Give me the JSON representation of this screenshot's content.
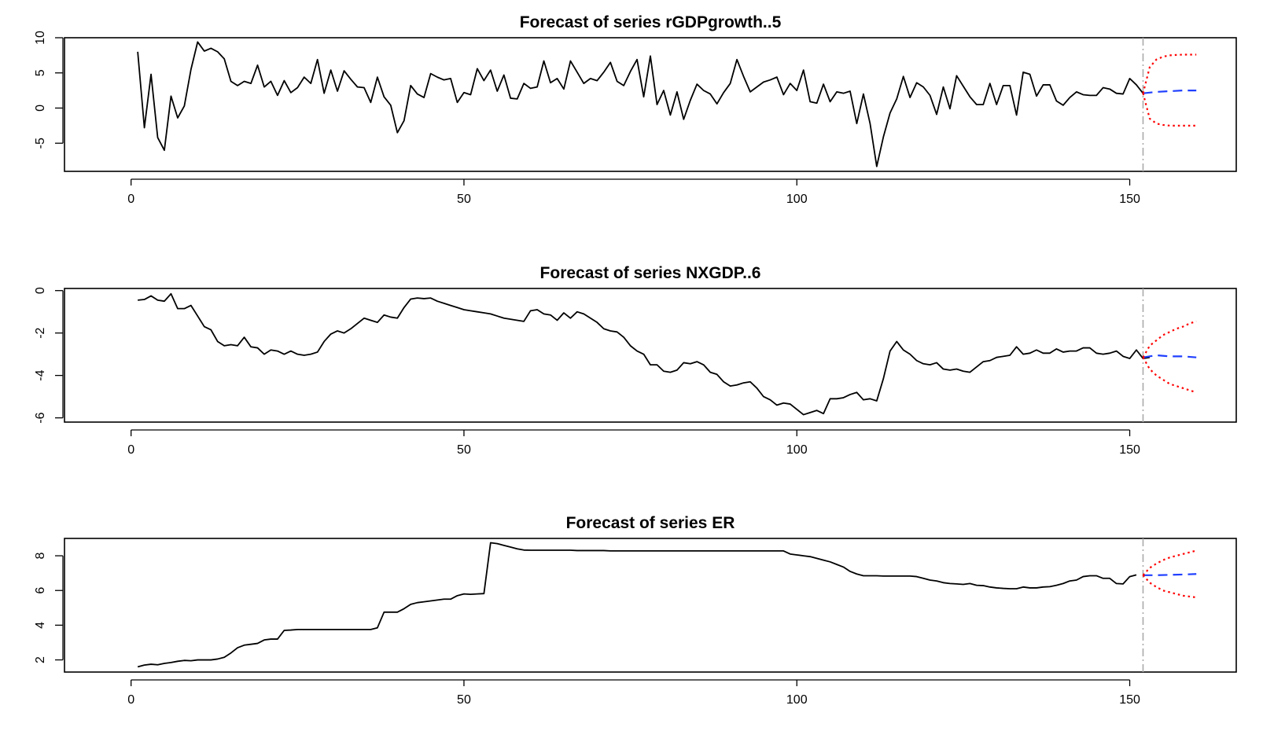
{
  "chart_data": [
    {
      "type": "line",
      "title": "Forecast of series rGDPgrowth..5",
      "xlim": [
        -10,
        166
      ],
      "ylim": [
        -9,
        10
      ],
      "x_ticks": [
        0,
        50,
        100,
        150
      ],
      "y_ticks": [
        -5,
        0,
        5,
        10
      ],
      "forecast_origin": 152,
      "series": [
        {
          "role": "observed",
          "color": "#000000",
          "x_start": 1,
          "values": [
            8.0,
            -2.8,
            4.8,
            -4.2,
            -6.0,
            1.7,
            -1.4,
            0.3,
            5.5,
            9.4,
            8.1,
            8.5,
            8.0,
            7.0,
            3.8,
            3.2,
            3.8,
            3.5,
            6.1,
            3.0,
            3.8,
            1.8,
            3.9,
            2.2,
            2.9,
            4.4,
            3.5,
            6.9,
            2.1,
            5.4,
            2.4,
            5.3,
            4.1,
            3.0,
            2.9,
            0.8,
            4.4,
            1.6,
            0.4,
            -3.5,
            -1.8,
            3.2,
            2.0,
            1.5,
            4.9,
            4.4,
            4.0,
            4.2,
            0.8,
            2.2,
            1.9,
            5.6,
            3.9,
            5.4,
            2.4,
            4.7,
            1.4,
            1.3,
            3.5,
            2.8,
            3.0,
            6.7,
            3.6,
            4.2,
            2.7,
            6.7,
            5.1,
            3.5,
            4.2,
            3.9,
            5.1,
            6.5,
            3.8,
            3.2,
            5.2,
            6.9,
            1.6,
            7.4,
            0.5,
            2.5,
            -1.0,
            2.3,
            -1.6,
            1.1,
            3.4,
            2.5,
            2.0,
            0.6,
            2.2,
            3.5,
            6.9,
            4.5,
            2.3,
            3.0,
            3.7,
            4.0,
            4.4,
            1.9,
            3.5,
            2.5,
            5.4,
            0.9,
            0.7,
            3.4,
            0.9,
            2.3,
            2.1,
            2.4,
            -2.2,
            2.0,
            -2.2,
            -8.3,
            -4.1,
            -0.7,
            1.3,
            4.5,
            1.5,
            3.6,
            3.0,
            1.8,
            -0.9,
            3.0,
            -0.1,
            4.6,
            3.1,
            1.6,
            0.5,
            0.5,
            3.5,
            0.5,
            3.2,
            3.2,
            -1.0,
            5.1,
            4.8,
            1.7,
            3.3,
            3.3,
            1.0,
            0.4,
            1.5,
            2.3,
            1.9,
            1.8,
            1.8,
            2.9,
            2.7,
            2.1,
            2.0,
            4.2,
            3.3,
            2.1
          ]
        },
        {
          "role": "forecast",
          "color": "#1f3fff",
          "x": [
            152,
            154,
            156,
            158,
            160
          ],
          "values": [
            2.1,
            2.3,
            2.4,
            2.5,
            2.5
          ]
        },
        {
          "role": "upper",
          "color": "#ff0000",
          "x": [
            152,
            153,
            154,
            155,
            156,
            158,
            160
          ],
          "values": [
            2.1,
            5.8,
            6.9,
            7.3,
            7.5,
            7.6,
            7.6
          ]
        },
        {
          "role": "lower",
          "color": "#ff0000",
          "x": [
            152,
            153,
            154,
            155,
            156,
            158,
            160
          ],
          "values": [
            2.1,
            -1.5,
            -2.2,
            -2.4,
            -2.5,
            -2.5,
            -2.5
          ]
        }
      ]
    },
    {
      "type": "line",
      "title": "Forecast of series NXGDP..6",
      "xlim": [
        -10,
        166
      ],
      "ylim": [
        -6.2,
        0.1
      ],
      "x_ticks": [
        0,
        50,
        100,
        150
      ],
      "y_ticks": [
        -6,
        -4,
        -2,
        0
      ],
      "forecast_origin": 152,
      "series": [
        {
          "role": "observed",
          "color": "#000000",
          "x_start": 1,
          "values": [
            -0.45,
            -0.42,
            -0.25,
            -0.45,
            -0.5,
            -0.15,
            -0.85,
            -0.85,
            -0.7,
            -1.2,
            -1.7,
            -1.85,
            -2.4,
            -2.6,
            -2.55,
            -2.6,
            -2.2,
            -2.65,
            -2.7,
            -3.0,
            -2.8,
            -2.85,
            -3.0,
            -2.85,
            -3.0,
            -3.05,
            -3.0,
            -2.9,
            -2.4,
            -2.05,
            -1.9,
            -2.0,
            -1.8,
            -1.55,
            -1.3,
            -1.4,
            -1.5,
            -1.15,
            -1.25,
            -1.3,
            -0.8,
            -0.4,
            -0.35,
            -0.38,
            -0.35,
            -0.5,
            -0.6,
            -0.7,
            -0.8,
            -0.9,
            -0.95,
            -1.0,
            -1.05,
            -1.1,
            -1.2,
            -1.3,
            -1.35,
            -1.4,
            -1.45,
            -0.95,
            -0.9,
            -1.1,
            -1.15,
            -1.4,
            -1.05,
            -1.3,
            -1.0,
            -1.1,
            -1.3,
            -1.5,
            -1.8,
            -1.9,
            -1.95,
            -2.2,
            -2.6,
            -2.85,
            -3.0,
            -3.5,
            -3.5,
            -3.8,
            -3.85,
            -3.75,
            -3.4,
            -3.45,
            -3.35,
            -3.5,
            -3.85,
            -3.95,
            -4.3,
            -4.5,
            -4.45,
            -4.35,
            -4.3,
            -4.6,
            -5.0,
            -5.15,
            -5.4,
            -5.3,
            -5.35,
            -5.6,
            -5.85,
            -5.75,
            -5.65,
            -5.8,
            -5.1,
            -5.1,
            -5.05,
            -4.9,
            -4.8,
            -5.15,
            -5.1,
            -5.2,
            -4.15,
            -2.85,
            -2.4,
            -2.8,
            -3.0,
            -3.3,
            -3.45,
            -3.5,
            -3.4,
            -3.7,
            -3.75,
            -3.7,
            -3.8,
            -3.85,
            -3.6,
            -3.35,
            -3.3,
            -3.15,
            -3.1,
            -3.05,
            -2.65,
            -3.0,
            -2.95,
            -2.8,
            -2.95,
            -2.95,
            -2.75,
            -2.9,
            -2.85,
            -2.85,
            -2.7,
            -2.7,
            -2.95,
            -3.0,
            -2.95,
            -2.85,
            -3.1,
            -3.2,
            -2.8,
            -3.2,
            -3.15
          ]
        },
        {
          "role": "forecast",
          "color": "#1f3fff",
          "x": [
            152,
            154,
            156,
            158,
            160
          ],
          "values": [
            -3.15,
            -3.05,
            -3.1,
            -3.1,
            -3.15
          ]
        },
        {
          "role": "upper",
          "color": "#ff0000",
          "x": [
            152,
            153,
            154,
            155,
            156,
            157,
            158,
            159,
            160
          ],
          "values": [
            -3.15,
            -2.6,
            -2.35,
            -2.1,
            -1.95,
            -1.8,
            -1.7,
            -1.55,
            -1.45
          ]
        },
        {
          "role": "lower",
          "color": "#ff0000",
          "x": [
            152,
            153,
            154,
            155,
            156,
            157,
            158,
            159,
            160
          ],
          "values": [
            -3.15,
            -3.7,
            -4.0,
            -4.2,
            -4.4,
            -4.5,
            -4.6,
            -4.7,
            -4.8
          ]
        }
      ]
    },
    {
      "type": "line",
      "title": "Forecast of series ER",
      "xlim": [
        -10,
        166
      ],
      "ylim": [
        1.3,
        9.0
      ],
      "x_ticks": [
        0,
        50,
        100,
        150
      ],
      "y_ticks": [
        2,
        4,
        6,
        8
      ],
      "forecast_origin": 152,
      "series": [
        {
          "role": "observed",
          "color": "#000000",
          "x_start": 1,
          "values": [
            1.6,
            1.7,
            1.75,
            1.72,
            1.8,
            1.85,
            1.92,
            1.97,
            1.95,
            2.0,
            2.0,
            2.0,
            2.05,
            2.15,
            2.4,
            2.7,
            2.85,
            2.9,
            2.95,
            3.15,
            3.2,
            3.2,
            3.7,
            3.72,
            3.75,
            3.75,
            3.75,
            3.75,
            3.75,
            3.75,
            3.75,
            3.75,
            3.75,
            3.75,
            3.75,
            3.75,
            3.85,
            4.75,
            4.75,
            4.75,
            4.95,
            5.2,
            5.3,
            5.35,
            5.4,
            5.45,
            5.5,
            5.5,
            5.7,
            5.8,
            5.78,
            5.8,
            5.82,
            8.75,
            8.7,
            8.6,
            8.5,
            8.4,
            8.33,
            8.32,
            8.32,
            8.32,
            8.32,
            8.32,
            8.32,
            8.32,
            8.3,
            8.3,
            8.3,
            8.3,
            8.3,
            8.28,
            8.28,
            8.28,
            8.28,
            8.28,
            8.28,
            8.28,
            8.28,
            8.28,
            8.28,
            8.28,
            8.28,
            8.28,
            8.28,
            8.28,
            8.28,
            8.28,
            8.28,
            8.28,
            8.28,
            8.28,
            8.28,
            8.28,
            8.28,
            8.28,
            8.28,
            8.28,
            8.1,
            8.05,
            8.0,
            7.95,
            7.85,
            7.75,
            7.65,
            7.5,
            7.35,
            7.1,
            6.95,
            6.85,
            6.85,
            6.85,
            6.83,
            6.83,
            6.83,
            6.83,
            6.83,
            6.8,
            6.7,
            6.6,
            6.55,
            6.45,
            6.4,
            6.38,
            6.35,
            6.4,
            6.3,
            6.28,
            6.2,
            6.15,
            6.12,
            6.1,
            6.1,
            6.2,
            6.15,
            6.15,
            6.2,
            6.22,
            6.3,
            6.4,
            6.55,
            6.6,
            6.8,
            6.85,
            6.85,
            6.7,
            6.7,
            6.4,
            6.38,
            6.8,
            6.9
          ]
        },
        {
          "role": "forecast",
          "color": "#1f3fff",
          "x": [
            152,
            154,
            156,
            158,
            160
          ],
          "values": [
            6.88,
            6.88,
            6.9,
            6.92,
            6.95
          ]
        },
        {
          "role": "upper",
          "color": "#ff0000",
          "x": [
            152,
            153,
            154,
            155,
            156,
            157,
            158,
            159,
            160
          ],
          "values": [
            6.88,
            7.3,
            7.55,
            7.75,
            7.9,
            8.0,
            8.1,
            8.2,
            8.3
          ]
        },
        {
          "role": "lower",
          "color": "#ff0000",
          "x": [
            152,
            153,
            154,
            155,
            156,
            157,
            158,
            159,
            160
          ],
          "values": [
            6.88,
            6.45,
            6.2,
            6.0,
            5.9,
            5.8,
            5.7,
            5.65,
            5.6
          ]
        }
      ]
    }
  ]
}
